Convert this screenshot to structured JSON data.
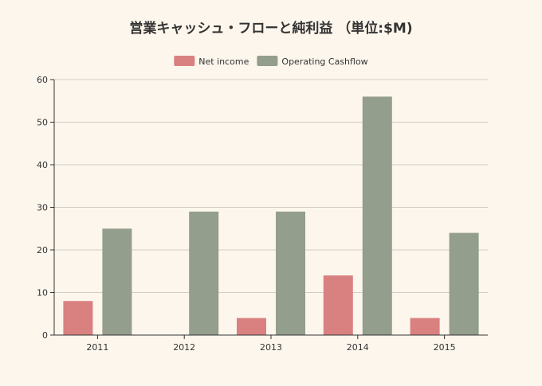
{
  "chart_data": {
    "type": "bar",
    "title": "営業キャッシュ・フローと純利益 （単位:$M)",
    "categories": [
      "2011",
      "2012",
      "2013",
      "2014",
      "2015"
    ],
    "series": [
      {
        "name": "Net income",
        "values": [
          8,
          0,
          4,
          14,
          4
        ],
        "color": "#d98080"
      },
      {
        "name": "Operating Cashflow",
        "values": [
          25,
          29,
          29,
          56,
          24
        ],
        "color": "#939e8c"
      }
    ],
    "yticks": [
      0,
      10,
      20,
      30,
      40,
      50,
      60
    ],
    "ylim": [
      0,
      60
    ],
    "xlabel": "",
    "ylabel": "",
    "grid": true,
    "legend_position": "top-center"
  }
}
